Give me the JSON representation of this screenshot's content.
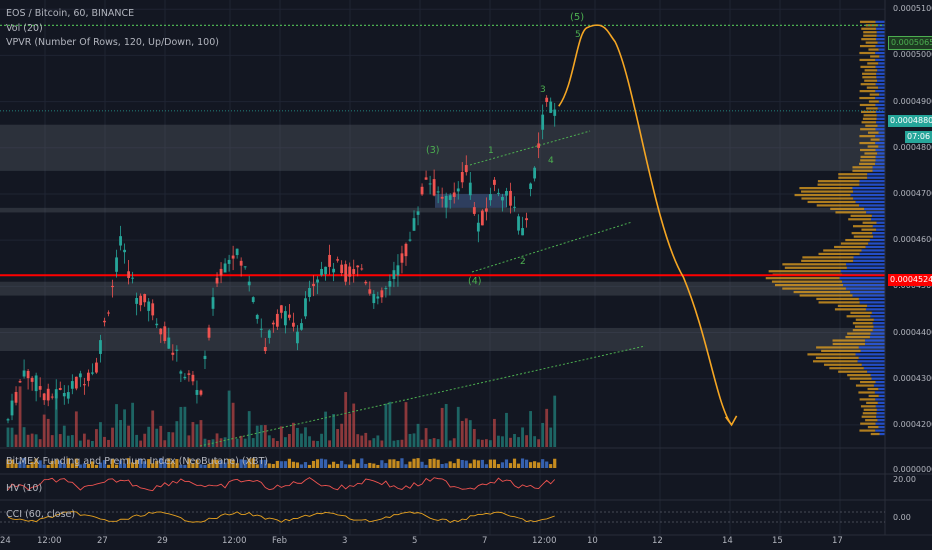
{
  "header": {
    "symbol_line": "EOS / Bitcoin, 60, BINANCE",
    "vol_line": "Vol (20)",
    "vpvr_line": "VPVR (Number Of Rows, 120, Up/Down, 100)"
  },
  "indicators": {
    "funding": "BitMEX Funding and Premium Index (NeoButane) (XBT)",
    "hv": "HV (10)",
    "cci": "CCI (60, close)"
  },
  "price_axis": {
    "ticks": [
      "0.0005100",
      "0.0005000",
      "0.0004900",
      "0.0004800",
      "0.0004700",
      "0.0004600",
      "0.0004500",
      "0.0004400",
      "0.0004300",
      "0.0004200"
    ],
    "tag_green": "0.0005065",
    "tag_current": "0.0004880",
    "tag_timer": "07:06",
    "tag_red": "0.0004524",
    "funding_tick": "0.0000000",
    "hv_tick": "20.00",
    "cci_tick": "0.00"
  },
  "time_axis": {
    "labels": [
      "24",
      "12:00",
      "27",
      "29",
      "12:00",
      "Feb",
      "3",
      "5",
      "7",
      "12:00",
      "10",
      "12",
      "14",
      "15",
      "17"
    ]
  },
  "wave_labels": {
    "w5_top": "(5)",
    "w5": "5",
    "w3": "3",
    "w4": "4",
    "w3_paren": "(3)",
    "w1": "1",
    "w2": "2",
    "w4_paren": "(4)"
  },
  "colors": {
    "background": "#131722",
    "up": "#26a69a",
    "down": "#ef5350",
    "support_line": "#ff0000",
    "target_line": "#4caf50",
    "projection": "#f5a623",
    "vpvr_up": "#2962ff",
    "vpvr_down": "#e6a11f"
  },
  "chart_data": {
    "type": "candlestick",
    "symbol": "EOS / Bitcoin",
    "interval": "60",
    "exchange": "BINANCE",
    "ylim": [
      0.000415,
      0.000512
    ],
    "horizontal_levels": [
      {
        "price": 0.0005065,
        "color": "green",
        "style": "dotted"
      },
      {
        "price": 0.0004524,
        "color": "red",
        "style": "solid"
      }
    ],
    "zones": [
      [
        0.000475,
        0.000485
      ],
      [
        0.000466,
        0.000467
      ],
      [
        0.000448,
        0.000451
      ],
      [
        0.000436,
        0.000441
      ]
    ],
    "path_anchors": [
      {
        "i": 0,
        "p": 0.000421
      },
      {
        "i": 4,
        "p": 0.000432
      },
      {
        "i": 10,
        "p": 0.000426
      },
      {
        "i": 16,
        "p": 0.000428
      },
      {
        "i": 22,
        "p": 0.000433
      },
      {
        "i": 28,
        "p": 0.000459
      },
      {
        "i": 32,
        "p": 0.000448
      },
      {
        "i": 36,
        "p": 0.000445
      },
      {
        "i": 40,
        "p": 0.000438
      },
      {
        "i": 44,
        "p": 0.000431
      },
      {
        "i": 48,
        "p": 0.000427
      },
      {
        "i": 52,
        "p": 0.000452
      },
      {
        "i": 56,
        "p": 0.000458
      },
      {
        "i": 60,
        "p": 0.000452
      },
      {
        "i": 64,
        "p": 0.000437
      },
      {
        "i": 68,
        "p": 0.000445
      },
      {
        "i": 72,
        "p": 0.000439
      },
      {
        "i": 76,
        "p": 0.000452
      },
      {
        "i": 80,
        "p": 0.000455
      },
      {
        "i": 84,
        "p": 0.000453
      },
      {
        "i": 88,
        "p": 0.000454
      },
      {
        "i": 92,
        "p": 0.000446
      },
      {
        "i": 96,
        "p": 0.000452
      },
      {
        "i": 100,
        "p": 0.00046
      },
      {
        "i": 104,
        "p": 0.000474
      },
      {
        "i": 107,
        "p": 0.00047
      },
      {
        "i": 110,
        "p": 0.000468
      },
      {
        "i": 114,
        "p": 0.000476
      },
      {
        "i": 117,
        "p": 0.000462
      },
      {
        "i": 121,
        "p": 0.000472
      },
      {
        "i": 125,
        "p": 0.000469
      },
      {
        "i": 128,
        "p": 0.000461
      },
      {
        "i": 132,
        "p": 0.00048
      },
      {
        "i": 134,
        "p": 0.000491
      },
      {
        "i": 136,
        "p": 0.000487
      }
    ],
    "projection": [
      {
        "i": 137,
        "p": 0.000489
      },
      {
        "i": 144,
        "p": 0.000506
      },
      {
        "i": 151,
        "p": 0.000503
      },
      {
        "i": 168,
        "p": 0.000452
      },
      {
        "i": 180,
        "p": 0.00042
      }
    ]
  }
}
